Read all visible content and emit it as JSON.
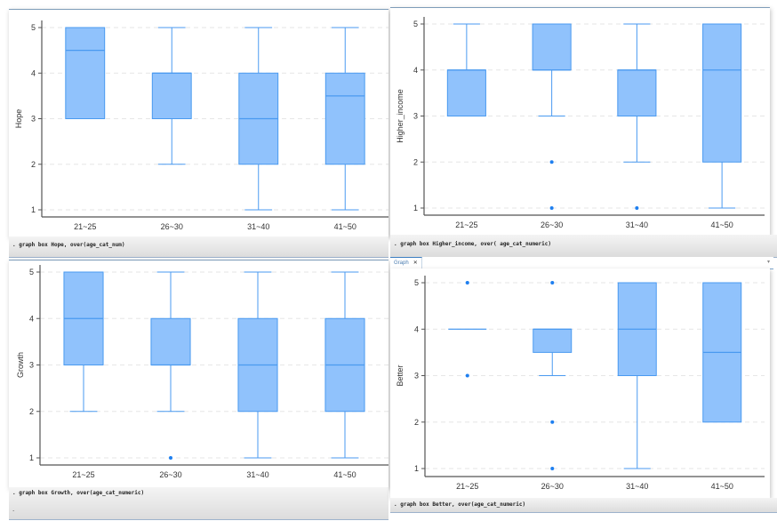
{
  "commands": [
    ". graph box Hope, over(age_cat_num)",
    ". graph box Higher_income, over( age_cat_numeric)",
    ". graph box Growth, over(age_cat_numeric)",
    ". graph box Better, over(age_cat_numeric)"
  ],
  "prompt_dot": ".",
  "tab": {
    "label": "Graph",
    "close": "✕",
    "dropdown": "▾"
  },
  "colors": {
    "box_fill": "#90c2fc",
    "box_stroke": "#4a9af0",
    "outlier": "#1e7ff0",
    "grid": "#e6e6e6",
    "axis": "#555555"
  },
  "chart_data": [
    {
      "type": "box",
      "title": "",
      "ylabel": "Hope",
      "xlabel": "",
      "categories": [
        "21~25",
        "26~30",
        "31~40",
        "41~50"
      ],
      "yticks": [
        "1",
        "2",
        "3",
        "4",
        "5"
      ],
      "ylim": [
        1,
        5
      ],
      "grid": true,
      "boxes": [
        {
          "min": 3,
          "q1": 3,
          "median": 4.5,
          "q3": 5,
          "max": 5,
          "outliers": []
        },
        {
          "min": 2,
          "q1": 3,
          "median": 4,
          "q3": 4,
          "max": 5,
          "outliers": []
        },
        {
          "min": 1,
          "q1": 2,
          "median": 3,
          "q3": 4,
          "max": 5,
          "outliers": []
        },
        {
          "min": 1,
          "q1": 2,
          "median": 3.5,
          "q3": 4,
          "max": 5,
          "outliers": []
        }
      ]
    },
    {
      "type": "box",
      "title": "",
      "ylabel": "Higher_income",
      "xlabel": "",
      "categories": [
        "21~25",
        "26~30",
        "31~40",
        "41~50"
      ],
      "yticks": [
        "1",
        "2",
        "3",
        "4",
        "5"
      ],
      "ylim": [
        1,
        5
      ],
      "grid": true,
      "boxes": [
        {
          "min": 3,
          "q1": 3,
          "median": 4,
          "q3": 4,
          "max": 5,
          "outliers": []
        },
        {
          "min": 3,
          "q1": 4,
          "median": 4,
          "q3": 5,
          "max": 5,
          "outliers": [
            2,
            1
          ]
        },
        {
          "min": 2,
          "q1": 3,
          "median": 4,
          "q3": 4,
          "max": 5,
          "outliers": [
            1
          ]
        },
        {
          "min": 1,
          "q1": 2,
          "median": 4,
          "q3": 5,
          "max": 5,
          "outliers": []
        }
      ]
    },
    {
      "type": "box",
      "title": "",
      "ylabel": "Growth",
      "xlabel": "",
      "categories": [
        "21~25",
        "26~30",
        "31~40",
        "41~50"
      ],
      "yticks": [
        "1",
        "2",
        "3",
        "4",
        "5"
      ],
      "ylim": [
        1,
        5
      ],
      "grid": true,
      "boxes": [
        {
          "min": 2,
          "q1": 3,
          "median": 4,
          "q3": 5,
          "max": 5,
          "outliers": []
        },
        {
          "min": 2,
          "q1": 3,
          "median": 3,
          "q3": 4,
          "max": 5,
          "outliers": [
            1
          ]
        },
        {
          "min": 1,
          "q1": 2,
          "median": 3,
          "q3": 4,
          "max": 5,
          "outliers": []
        },
        {
          "min": 1,
          "q1": 2,
          "median": 3,
          "q3": 4,
          "max": 5,
          "outliers": []
        }
      ]
    },
    {
      "type": "box",
      "title": "",
      "ylabel": "Better",
      "xlabel": "",
      "categories": [
        "21~25",
        "26~30",
        "31~40",
        "41~50"
      ],
      "yticks": [
        "1",
        "2",
        "3",
        "4",
        "5"
      ],
      "ylim": [
        1,
        5
      ],
      "grid": true,
      "boxes": [
        {
          "min": 4,
          "q1": 4,
          "median": 4,
          "q3": 4,
          "max": 4,
          "outliers": [
            5,
            3
          ]
        },
        {
          "min": 3,
          "q1": 3.5,
          "median": 4,
          "q3": 4,
          "max": 4,
          "outliers": [
            5,
            2,
            1
          ]
        },
        {
          "min": 1,
          "q1": 3,
          "median": 4,
          "q3": 5,
          "max": 5,
          "outliers": []
        },
        {
          "min": 2,
          "q1": 2,
          "median": 3.5,
          "q3": 5,
          "max": 5,
          "outliers": []
        }
      ]
    }
  ]
}
